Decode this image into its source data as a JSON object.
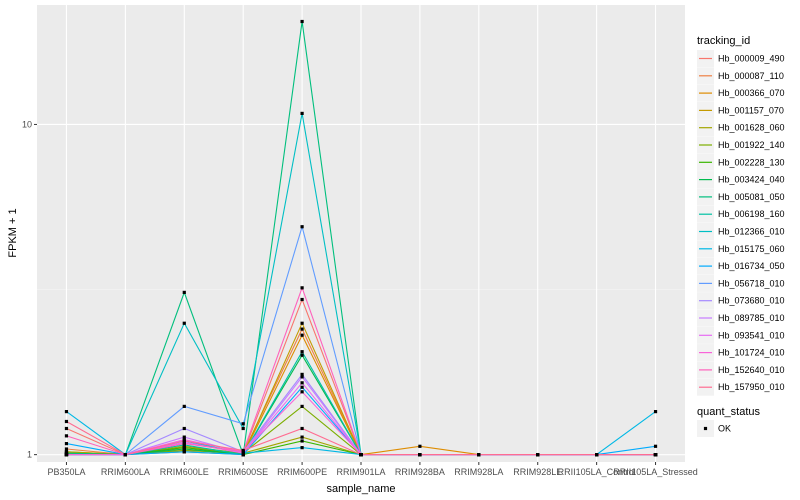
{
  "chart_data": {
    "type": "line",
    "xlabel": "sample_name",
    "ylabel": "FPKM + 1",
    "y_scale": "log10",
    "ylim": [
      0.95,
      23
    ],
    "y_ticks": [
      1,
      10
    ],
    "grid": true,
    "legend_placement": "right",
    "categories": [
      "PB350LA",
      "RRIM600LA",
      "RRIM600LE",
      "RRIM600SE",
      "RRIM600PE",
      "RRIM901LA",
      "RRIM928BA",
      "RRIM928LA",
      "RRIM928LE",
      "RRII105LA_Control",
      "RRII105LA_Stressed"
    ],
    "legend_color": {
      "title": "tracking_id"
    },
    "legend_shape": {
      "title": "quant_status",
      "entries": [
        "OK"
      ]
    },
    "series": [
      {
        "name": "Hb_000009_490",
        "color": "#F8766D",
        "values": [
          1.2,
          1.0,
          1.03,
          1.01,
          2.95,
          1.0,
          1.0,
          1.0,
          1.0,
          1.0,
          1.0
        ]
      },
      {
        "name": "Hb_000087_110",
        "color": "#EE8044",
        "values": [
          1.04,
          1.0,
          1.05,
          1.01,
          2.4,
          1.0,
          1.0,
          1.0,
          1.0,
          1.0,
          1.0
        ]
      },
      {
        "name": "Hb_000366_070",
        "color": "#DE8C00",
        "values": [
          1.02,
          1.0,
          1.04,
          1.0,
          2.3,
          1.0,
          1.06,
          1.0,
          1.0,
          1.0,
          1.0
        ]
      },
      {
        "name": "Hb_001157_070",
        "color": "#C49A00",
        "values": [
          1.01,
          1.0,
          1.02,
          1.0,
          2.5,
          1.0,
          1.0,
          1.0,
          1.0,
          1.0,
          1.0
        ]
      },
      {
        "name": "Hb_001628_060",
        "color": "#A3A500",
        "values": [
          1.02,
          1.0,
          1.06,
          1.01,
          1.13,
          1.0,
          1.0,
          1.0,
          1.0,
          1.0,
          1.0
        ]
      },
      {
        "name": "Hb_001922_140",
        "color": "#7CAE00",
        "values": [
          1.01,
          1.0,
          1.03,
          1.01,
          1.4,
          1.0,
          1.0,
          1.0,
          1.0,
          1.0,
          1.0
        ]
      },
      {
        "name": "Hb_002228_130",
        "color": "#39B600",
        "values": [
          1.0,
          1.0,
          1.05,
          1.0,
          1.1,
          1.0,
          1.0,
          1.0,
          1.0,
          1.0,
          1.0
        ]
      },
      {
        "name": "Hb_003424_040",
        "color": "#00BB4E",
        "values": [
          1.0,
          1.0,
          1.04,
          1.0,
          2.0,
          1.0,
          1.0,
          1.0,
          1.0,
          1.0,
          1.0
        ]
      },
      {
        "name": "Hb_005081_050",
        "color": "#00BF7D",
        "values": [
          1.01,
          1.0,
          3.1,
          1.0,
          20.5,
          1.0,
          1.0,
          1.0,
          1.0,
          1.0,
          1.0
        ]
      },
      {
        "name": "Hb_006198_160",
        "color": "#00C1A3",
        "values": [
          1.0,
          1.0,
          1.07,
          1.0,
          2.05,
          1.0,
          1.0,
          1.0,
          1.0,
          1.0,
          1.0
        ]
      },
      {
        "name": "Hb_012366_010",
        "color": "#00BFC4",
        "values": [
          1.0,
          1.0,
          2.5,
          1.2,
          10.8,
          1.0,
          1.0,
          1.0,
          1.0,
          1.0,
          1.0
        ]
      },
      {
        "name": "Hb_015175_060",
        "color": "#00B8E5",
        "values": [
          1.35,
          1.0,
          1.1,
          1.01,
          1.05,
          1.0,
          1.0,
          1.0,
          1.0,
          1.0,
          1.35
        ]
      },
      {
        "name": "Hb_016734_050",
        "color": "#00ABFD",
        "values": [
          1.08,
          1.0,
          1.02,
          1.0,
          1.6,
          1.0,
          1.0,
          1.0,
          1.0,
          1.0,
          1.06
        ]
      },
      {
        "name": "Hb_056718_010",
        "color": "#619CFF",
        "values": [
          1.0,
          1.0,
          1.4,
          1.24,
          4.9,
          1.0,
          1.0,
          1.0,
          1.0,
          1.0,
          1.0
        ]
      },
      {
        "name": "Hb_073680_010",
        "color": "#A58AFF",
        "values": [
          1.0,
          1.0,
          1.2,
          1.02,
          1.75,
          1.0,
          1.0,
          1.0,
          1.0,
          1.0,
          1.0
        ]
      },
      {
        "name": "Hb_089785_010",
        "color": "#C77CFF",
        "values": [
          1.0,
          1.0,
          1.13,
          1.01,
          1.72,
          1.0,
          1.0,
          1.0,
          1.0,
          1.0,
          1.0
        ]
      },
      {
        "name": "Hb_093541_010",
        "color": "#E76BF3",
        "values": [
          1.0,
          1.0,
          1.09,
          1.01,
          1.65,
          1.0,
          1.0,
          1.0,
          1.0,
          1.0,
          1.0
        ]
      },
      {
        "name": "Hb_101724_010",
        "color": "#F964D9",
        "values": [
          1.0,
          1.0,
          1.11,
          1.02,
          1.55,
          1.0,
          1.0,
          1.0,
          1.0,
          1.0,
          1.0
        ]
      },
      {
        "name": "Hb_152640_010",
        "color": "#FF62BC",
        "values": [
          1.14,
          1.0,
          1.08,
          1.02,
          3.2,
          1.0,
          1.0,
          1.0,
          1.0,
          1.0,
          1.0
        ]
      },
      {
        "name": "Hb_157950_010",
        "color": "#FF6C91",
        "values": [
          1.26,
          1.0,
          1.1,
          1.03,
          1.2,
          1.0,
          1.0,
          1.0,
          1.0,
          1.0,
          1.0
        ]
      }
    ]
  }
}
